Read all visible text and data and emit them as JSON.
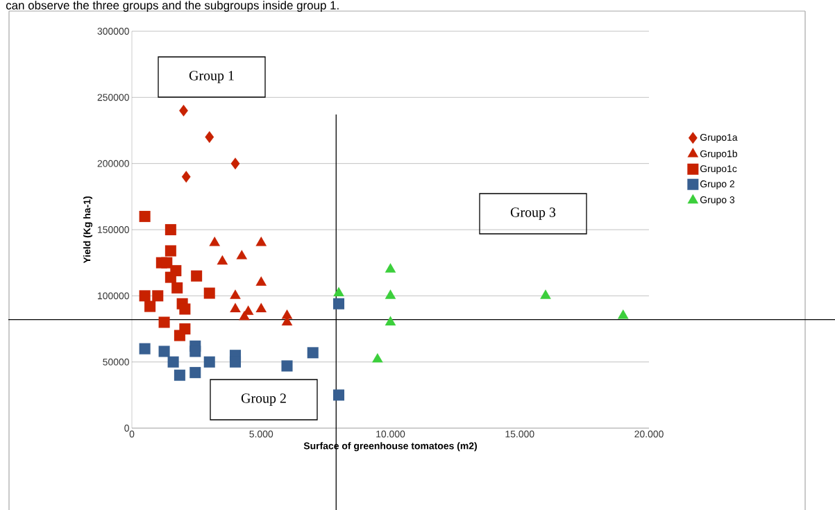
{
  "chart_data": {
    "type": "scatter",
    "xlabel": "Surface of greenhouse tomatoes (m2)",
    "ylabel": "Yield (Kg ha-1)",
    "annotations": [
      "can observe the three groups and the subgroups inside group 1.",
      "Group 1",
      "Group 2",
      "Group 3"
    ],
    "xlim": [
      0,
      20000
    ],
    "ylim": [
      0,
      300000
    ],
    "xticks": [
      0,
      {
        "value": 5000,
        "label": "5.000"
      },
      {
        "value": 10000,
        "label": "10.000"
      },
      {
        "value": 15000,
        "label": "15.000"
      },
      {
        "value": 20000,
        "label": "20.000"
      }
    ],
    "yticks": [
      0,
      50000,
      100000,
      150000,
      200000,
      250000,
      300000
    ],
    "grid": "y",
    "legend": "right",
    "ref_lines": [
      {
        "axis": "y",
        "value": 82000,
        "color": "#000000"
      },
      {
        "axis": "x",
        "value": 7900,
        "color": "#000000"
      }
    ],
    "series": [
      {
        "name": "Grupo1a",
        "color": "#c82200",
        "marker": "diamond",
        "x": [
          2000,
          3000,
          4000,
          2100
        ],
        "values": [
          240000,
          220000,
          200000,
          190000
        ]
      },
      {
        "name": "Grupo1b",
        "color": "#c82200",
        "marker": "triangle",
        "x": [
          3200,
          3500,
          4250,
          5000,
          5000,
          4000,
          4000,
          4350,
          4500,
          5000,
          6000,
          6000
        ],
        "values": [
          140000,
          126000,
          130000,
          140000,
          110000,
          100000,
          90000,
          84000,
          88000,
          90000,
          85000,
          80000
        ]
      },
      {
        "name": "Grupo1c",
        "color": "#c82200",
        "marker": "square",
        "x": [
          500,
          1500,
          1500,
          1150,
          1350,
          1700,
          1500,
          1750,
          2500,
          3000,
          500,
          1000,
          700,
          1950,
          2050,
          1250,
          2050,
          1850
        ],
        "values": [
          160000,
          150000,
          134000,
          125000,
          125000,
          119000,
          114000,
          106000,
          115000,
          102000,
          100000,
          100000,
          92000,
          94000,
          90000,
          80000,
          75000,
          70000
        ]
      },
      {
        "name": "Grupo 2",
        "color": "#375f91",
        "marker": "square",
        "x": [
          500,
          1250,
          1600,
          1850,
          2450,
          2450,
          2450,
          3000,
          4000,
          4000,
          6000,
          7000,
          8000,
          8000
        ],
        "values": [
          60000,
          58000,
          50000,
          40000,
          62000,
          58000,
          42000,
          50000,
          55000,
          50000,
          47000,
          57000,
          94000,
          25000
        ]
      },
      {
        "name": "Grupo 3",
        "color": "#3ccf3c",
        "marker": "triangle",
        "x": [
          8000,
          10000,
          10000,
          10000,
          9500,
          16000,
          19000
        ],
        "values": [
          102000,
          120000,
          100000,
          80000,
          52000,
          100000,
          85000
        ]
      }
    ]
  }
}
